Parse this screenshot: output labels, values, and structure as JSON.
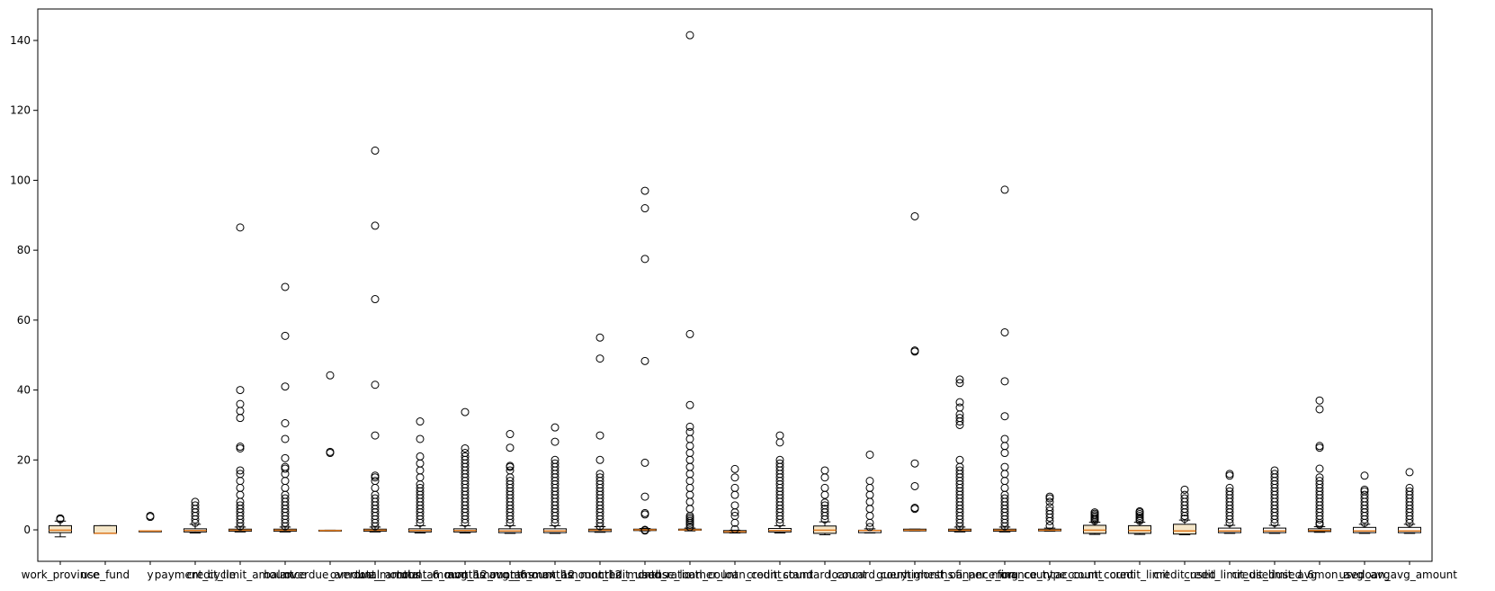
{
  "chart_data": {
    "type": "box",
    "title": "",
    "xlabel": "",
    "ylabel": "",
    "ylim": [
      -9,
      149
    ],
    "yticks": [
      0,
      20,
      40,
      60,
      80,
      100,
      120,
      140
    ],
    "grid": false,
    "colors": {
      "box_edge": "#000000",
      "median": "#e07b20",
      "box_fill": "#ffffff",
      "highlight_fill": "#f5e6c8"
    },
    "categories": [
      {
        "label": "work_province",
        "q1": -0.8,
        "median": -0.1,
        "q3": 1.2,
        "wlow": -2.0,
        "whigh": 2.5,
        "outliers": [
          3.0,
          3.3
        ]
      },
      {
        "label": "use_fund",
        "q1": -1.0,
        "median": -1.0,
        "q3": 1.2,
        "wlow": -1.0,
        "whigh": 1.2,
        "outliers": []
      },
      {
        "label": "y",
        "q1": -0.3,
        "median": -0.3,
        "q3": -0.3,
        "wlow": -0.3,
        "whigh": -0.3,
        "outliers": [
          3.7,
          4.0
        ]
      },
      {
        "label": "payment_cycle",
        "q1": -0.6,
        "median": -0.2,
        "q3": 0.3,
        "wlow": -0.9,
        "whigh": 1.6,
        "outliers": [
          2,
          3,
          4,
          5,
          6,
          7,
          8
        ]
      },
      {
        "label": "credit_limit_amount",
        "q1": -0.4,
        "median": -0.1,
        "q3": 0.2,
        "wlow": -0.6,
        "whigh": 0.8,
        "outliers": [
          1,
          2,
          3,
          4,
          5,
          6,
          7,
          8,
          10,
          12,
          14,
          16,
          17,
          23.3,
          23.8,
          32,
          34,
          36,
          40,
          86.5
        ]
      },
      {
        "label": "balance",
        "q1": -0.4,
        "median": -0.1,
        "q3": 0.2,
        "wlow": -0.6,
        "whigh": 0.8,
        "outliers": [
          1,
          2,
          3,
          4,
          5,
          6,
          7,
          8,
          9,
          10,
          12,
          14,
          16,
          17.5,
          18,
          20.5,
          26,
          30.5,
          41,
          55.5,
          69.5
        ]
      },
      {
        "label": "overdue_amount",
        "q1": -0.3,
        "median": -0.2,
        "q3": -0.1,
        "wlow": -0.3,
        "whigh": -0.1,
        "outliers": [
          22,
          22.3,
          44.2
        ]
      },
      {
        "label": "overdue_months",
        "q1": -0.4,
        "median": -0.1,
        "q3": 0.2,
        "wlow": -0.6,
        "whigh": 0.8,
        "outliers": [
          1,
          2,
          3,
          4,
          5,
          6,
          7,
          8,
          9,
          10,
          12,
          14,
          15,
          15.5,
          27,
          41.5,
          66,
          87,
          108.5
        ]
      },
      {
        "label": "total_amount_6_months",
        "q1": -0.6,
        "median": -0.2,
        "q3": 0.3,
        "wlow": -0.9,
        "whigh": 1.2,
        "outliers": [
          2,
          3,
          4,
          5,
          6,
          7,
          8,
          9,
          10,
          11,
          12,
          13,
          15,
          17,
          19,
          21,
          26,
          31
        ]
      },
      {
        "label": "total_amount_12_months",
        "q1": -0.6,
        "median": -0.2,
        "q3": 0.3,
        "wlow": -0.9,
        "whigh": 1.2,
        "outliers": [
          2,
          3,
          4,
          5,
          6,
          7,
          8,
          9,
          10,
          11,
          12,
          13,
          14,
          15,
          16,
          17,
          18,
          19,
          20,
          21,
          22,
          23.3,
          33.7
        ]
      },
      {
        "label": "avg_amount_6_months",
        "q1": -0.8,
        "median": -0.3,
        "q3": 0.3,
        "wlow": -1.0,
        "whigh": 1.2,
        "outliers": [
          2,
          3,
          4,
          5,
          6,
          7,
          8,
          9,
          10,
          11,
          12,
          13,
          14,
          15,
          17,
          18,
          18.3,
          23.5,
          27.4
        ]
      },
      {
        "label": "avg_amount_12_months",
        "q1": -0.8,
        "median": -0.3,
        "q3": 0.3,
        "wlow": -1.0,
        "whigh": 1.2,
        "outliers": [
          2,
          3,
          4,
          5,
          6,
          7,
          8,
          9,
          10,
          11,
          12,
          13,
          14,
          15,
          16,
          17,
          18,
          19,
          20,
          25.2,
          29.3
        ]
      },
      {
        "label": "max_amount_12_months",
        "q1": -0.5,
        "median": -0.1,
        "q3": 0.2,
        "wlow": -0.7,
        "whigh": 0.9,
        "outliers": [
          1,
          2,
          3,
          4,
          5,
          6,
          7,
          8,
          9,
          10,
          11,
          12,
          13,
          14,
          15,
          16,
          20,
          27,
          49,
          55
        ]
      },
      {
        "label": "credit_used_ratio",
        "q1": -0.2,
        "median": 0.0,
        "q3": 0.2,
        "wlow": -0.3,
        "whigh": 0.4,
        "outliers": [
          -0.2,
          0.0,
          4.4,
          4.8,
          9.5,
          19.2,
          48.3,
          77.5,
          92,
          97
        ]
      },
      {
        "label": "house_loan_count",
        "q1": -0.1,
        "median": 0.0,
        "q3": 0.2,
        "wlow": -0.3,
        "whigh": 0.5,
        "outliers": [
          0.8,
          1.5,
          2.0,
          2.5,
          3.0,
          3.5,
          4,
          6,
          8,
          10,
          12,
          14,
          16,
          18,
          20,
          22,
          24,
          26,
          28,
          29.5,
          35.7,
          56,
          141.5
        ]
      },
      {
        "label": "other_loan_count",
        "q1": -0.8,
        "median": -0.5,
        "q3": -0.2,
        "wlow": -0.9,
        "whigh": -0.1,
        "outliers": [
          0.2,
          2,
          4,
          5,
          7,
          10,
          12,
          15,
          17.4
        ]
      },
      {
        "label": "credit_count",
        "q1": -0.6,
        "median": -0.2,
        "q3": 0.4,
        "wlow": -0.9,
        "whigh": 1.2,
        "outliers": [
          2,
          3,
          4,
          5,
          6,
          7,
          8,
          9,
          10,
          11,
          12,
          13,
          14,
          15,
          16,
          17,
          18,
          19,
          20,
          25,
          27
        ]
      },
      {
        "label": "standard_count",
        "q1": -1.0,
        "median": -0.1,
        "q3": 1.1,
        "wlow": -1.4,
        "whigh": 2.3,
        "outliers": [
          3,
          4,
          5,
          6,
          7,
          7.8,
          10,
          12,
          15,
          17
        ]
      },
      {
        "label": "loancard_count",
        "q1": -0.8,
        "median": -0.2,
        "q3": -0.1,
        "wlow": -0.9,
        "whigh": 0.3,
        "outliers": [
          0.8,
          2,
          4,
          6,
          8,
          10,
          12,
          14,
          21.5
        ]
      },
      {
        "label": "query_months",
        "q1": -0.3,
        "median": -0.1,
        "q3": 0.2,
        "wlow": -0.3,
        "whigh": 0.2,
        "outliers": [
          6,
          6.3,
          12.5,
          19,
          51,
          51.3,
          89.7
        ]
      },
      {
        "label": "highest_oa_per_mon",
        "q1": -0.4,
        "median": -0.1,
        "q3": 0.2,
        "wlow": -0.6,
        "whigh": 0.8,
        "outliers": [
          1,
          2,
          3,
          4,
          5,
          6,
          7,
          8,
          9,
          10,
          11,
          12,
          13,
          14,
          15,
          16,
          17,
          18,
          20,
          30,
          31,
          32,
          33,
          35,
          36.5,
          42,
          43
        ]
      },
      {
        "label": "finance_org_count",
        "q1": -0.4,
        "median": -0.1,
        "q3": 0.2,
        "wlow": -0.6,
        "whigh": 0.8,
        "outliers": [
          1,
          2,
          3,
          4,
          5,
          6,
          7,
          8,
          9,
          10,
          12,
          14,
          16,
          18,
          22,
          24,
          26,
          32.5,
          42.5,
          56.5,
          97.3
        ]
      },
      {
        "label": "finance_type_count",
        "q1": -0.3,
        "median": -0.1,
        "q3": 0.2,
        "wlow": -0.4,
        "whigh": 0.5,
        "outliers": [
          1.2,
          2.5,
          3.5,
          4.5,
          5.5,
          6.5,
          8,
          9,
          9.5
        ]
      },
      {
        "label": "account_count",
        "q1": -1.0,
        "median": -0.1,
        "q3": 1.3,
        "wlow": -1.3,
        "whigh": 2.2,
        "outliers": [
          2.6,
          3.0,
          3.4,
          3.8,
          4.2,
          4.6,
          5.0
        ]
      },
      {
        "label": "credit_limit",
        "q1": -1.0,
        "median": -0.2,
        "q3": 1.2,
        "wlow": -1.3,
        "whigh": 2.2,
        "outliers": [
          2.6,
          3.0,
          3.5,
          4.0,
          4.5,
          5.0,
          5.3
        ]
      },
      {
        "label": "credit_used",
        "q1": -1.2,
        "median": -0.3,
        "q3": 1.6,
        "wlow": -1.4,
        "whigh": 2.8,
        "outliers": [
          3.2,
          4,
          5,
          6,
          7,
          8,
          9,
          10,
          11.5
        ]
      },
      {
        "label": "credit_limit_used",
        "q1": -0.8,
        "median": -0.3,
        "q3": 0.5,
        "wlow": -1.0,
        "whigh": 1.3,
        "outliers": [
          2,
          3,
          4,
          5,
          6,
          7,
          8,
          9,
          10,
          11,
          12,
          15.5,
          16
        ]
      },
      {
        "label": "credit_limit_avg",
        "q1": -0.8,
        "median": -0.3,
        "q3": 0.5,
        "wlow": -1.0,
        "whigh": 1.3,
        "outliers": [
          2,
          3,
          4,
          5,
          6,
          7,
          8,
          9,
          10,
          11,
          12,
          13,
          14,
          15,
          16,
          17
        ]
      },
      {
        "label": "used_6mon_avg",
        "q1": -0.5,
        "median": -0.2,
        "q3": 0.3,
        "wlow": -0.7,
        "whigh": 0.9,
        "outliers": [
          1.5,
          2,
          3,
          4,
          5,
          6,
          7,
          8,
          9,
          10,
          11,
          12,
          13,
          14,
          15,
          17.5,
          23.5,
          24,
          34.5,
          37
        ]
      },
      {
        "label": "used_avg",
        "q1": -0.8,
        "median": -0.3,
        "q3": 0.7,
        "wlow": -1.0,
        "whigh": 1.6,
        "outliers": [
          2,
          3,
          4,
          5,
          6,
          7,
          8,
          9,
          10,
          11,
          11.5,
          15.5
        ]
      },
      {
        "label": "loan_avg_amount",
        "q1": -0.8,
        "median": -0.3,
        "q3": 0.7,
        "wlow": -1.0,
        "whigh": 1.6,
        "outliers": [
          2,
          3,
          4,
          5,
          6,
          7,
          8,
          9,
          10,
          11,
          12,
          16.5
        ]
      }
    ]
  }
}
